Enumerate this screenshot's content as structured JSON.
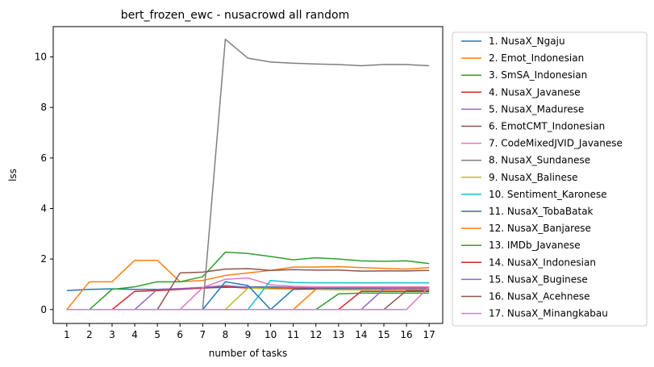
{
  "chart_data": {
    "type": "line",
    "title": "bert_frozen_ewc - nusacrowd all random",
    "xlabel": "number of tasks",
    "ylabel": "lss",
    "x": [
      1,
      2,
      3,
      4,
      5,
      6,
      7,
      8,
      9,
      10,
      11,
      12,
      13,
      14,
      15,
      16,
      17
    ],
    "xlim": [
      0.4,
      17.6
    ],
    "ylim": [
      -0.55,
      11.2
    ],
    "yticks": [
      0,
      2,
      4,
      6,
      8,
      10
    ],
    "grid": false,
    "legend_position": "outside-right",
    "series": [
      {
        "name": "1. NusaX_Ngaju",
        "color": "#1f77b4",
        "values": [
          0.75,
          0.8,
          0.82,
          0.8,
          0.8,
          0.82,
          0.85,
          0.88,
          0.9,
          0.9,
          0.88,
          0.88,
          0.87,
          0.87,
          0.87,
          0.87,
          0.88
        ]
      },
      {
        "name": "2. Emot_Indonesian",
        "color": "#ff7f0e",
        "values": [
          0,
          1.1,
          1.1,
          1.95,
          1.95,
          1.1,
          1.15,
          1.35,
          1.45,
          1.55,
          1.68,
          1.68,
          1.7,
          1.66,
          1.63,
          1.6,
          1.66
        ]
      },
      {
        "name": "3. SmSA_Indonesian",
        "color": "#2ca02c",
        "values": [
          0,
          0,
          0.8,
          0.9,
          1.1,
          1.1,
          1.3,
          2.27,
          2.22,
          2.1,
          1.97,
          2.05,
          2.0,
          1.93,
          1.91,
          1.93,
          1.82
        ]
      },
      {
        "name": "4. NusaX_Javanese",
        "color": "#d62728",
        "values": [
          0,
          0,
          0,
          0.72,
          0.75,
          0.8,
          0.85,
          0.9,
          0.85,
          0.85,
          0.85,
          0.85,
          0.82,
          0.82,
          0.8,
          0.8,
          0.8
        ]
      },
      {
        "name": "5. NusaX_Madurese",
        "color": "#9467bd",
        "values": [
          0,
          0,
          0,
          0,
          0.8,
          0.83,
          0.88,
          0.95,
          0.88,
          0.88,
          0.88,
          0.88,
          0.87,
          0.85,
          0.85,
          0.85,
          0.85
        ]
      },
      {
        "name": "6. EmotCMT_Indonesian",
        "color": "#8c564b",
        "values": [
          0,
          0,
          0,
          0,
          0,
          1.45,
          1.48,
          1.6,
          1.62,
          1.55,
          1.58,
          1.56,
          1.56,
          1.52,
          1.53,
          1.53,
          1.55
        ]
      },
      {
        "name": "7. CodeMixedJVID_Javanese",
        "color": "#e377c2",
        "values": [
          0,
          0,
          0,
          0,
          0,
          0,
          0.87,
          1.2,
          1.25,
          0.98,
          0.92,
          0.9,
          0.9,
          0.9,
          0.9,
          0.9,
          0.9
        ]
      },
      {
        "name": "8. NusaX_Sundanese",
        "color": "#7f7f7f",
        "values": [
          0,
          0,
          0,
          0,
          0,
          0,
          0,
          10.7,
          9.95,
          9.8,
          9.75,
          9.72,
          9.7,
          9.65,
          9.7,
          9.7,
          9.65
        ]
      },
      {
        "name": "9. NusaX_Balinese",
        "color": "#bcbd22",
        "values": [
          0,
          0,
          0,
          0,
          0,
          0,
          0,
          0,
          0.85,
          0.82,
          0.8,
          0.8,
          0.78,
          0.78,
          0.78,
          0.78,
          0.78
        ]
      },
      {
        "name": "10. Sentiment_Karonese",
        "color": "#17becf",
        "values": [
          0,
          0,
          0,
          0,
          0,
          0,
          0,
          0,
          0,
          1.15,
          1.07,
          1.06,
          1.06,
          1.06,
          1.06,
          1.06,
          1.06
        ]
      },
      {
        "name": "11. NusaX_TobaBatak",
        "color": "#1f77b4",
        "values": [
          0,
          0,
          0,
          0,
          0,
          0,
          0,
          1.1,
          0.95,
          0.0,
          0.8,
          0.82,
          0.83,
          0.82,
          0.82,
          0.82,
          0.82
        ]
      },
      {
        "name": "12. NusaX_Banjarese",
        "color": "#ff7f0e",
        "values": [
          0,
          0,
          0,
          0,
          0,
          0,
          0,
          0,
          0,
          0,
          0,
          0.8,
          0.8,
          0.8,
          0.8,
          0.8,
          0.8
        ]
      },
      {
        "name": "13. IMDb_Javanese",
        "color": "#2ca02c",
        "values": [
          0,
          0,
          0,
          0,
          0,
          0,
          0,
          0,
          0,
          0,
          0,
          0,
          0.62,
          0.65,
          0.65,
          0.65,
          0.65
        ]
      },
      {
        "name": "14. NusaX_Indonesian",
        "color": "#d62728",
        "values": [
          0,
          0,
          0,
          0,
          0,
          0,
          0,
          0,
          0,
          0,
          0,
          0,
          0,
          0.72,
          0.72,
          0.72,
          0.72
        ]
      },
      {
        "name": "15. NusaX_Buginese",
        "color": "#9467bd",
        "values": [
          0,
          0,
          0,
          0,
          0,
          0,
          0,
          0,
          0,
          0,
          0,
          0,
          0,
          0,
          0.82,
          0.85,
          0.85
        ]
      },
      {
        "name": "16. NusaX_Acehnese",
        "color": "#8c564b",
        "values": [
          0,
          0,
          0,
          0,
          0,
          0,
          0,
          0,
          0,
          0,
          0,
          0,
          0,
          0,
          0,
          0.75,
          0.75
        ]
      },
      {
        "name": "17. NusaX_Minangkabau",
        "color": "#e377c2",
        "values": [
          0,
          0,
          0,
          0,
          0,
          0,
          0,
          0,
          0,
          0,
          0,
          0,
          0,
          0,
          0,
          0,
          0.9
        ]
      }
    ]
  }
}
